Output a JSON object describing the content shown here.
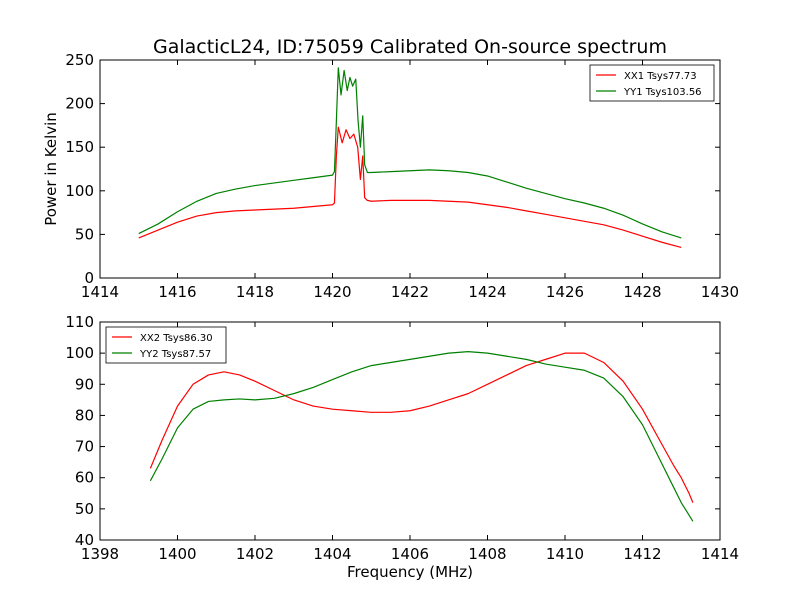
{
  "figure": {
    "title": "GalacticL24, ID:75059 Calibrated On-source spectrum",
    "xlabel": "Frequency (MHz)"
  },
  "chart_data": [
    {
      "type": "line",
      "title": "GalacticL24, ID:75059 Calibrated On-source spectrum",
      "xlabel": "",
      "ylabel": "Power in Kelvin",
      "xlim": [
        1414,
        1430
      ],
      "ylim": [
        0,
        250
      ],
      "xticks": [
        1414,
        1416,
        1418,
        1420,
        1422,
        1424,
        1426,
        1428,
        1430
      ],
      "yticks": [
        0,
        50,
        100,
        150,
        200,
        250
      ],
      "grid": false,
      "legend_position": "top-right",
      "series": [
        {
          "name": "XX1 Tsys77.73",
          "color": "#ff0000",
          "x": [
            1415.0,
            1415.5,
            1416.0,
            1416.5,
            1417.0,
            1417.5,
            1418.0,
            1418.5,
            1419.0,
            1419.5,
            1420.0,
            1420.05,
            1420.1,
            1420.15,
            1420.25,
            1420.35,
            1420.45,
            1420.55,
            1420.65,
            1420.72,
            1420.78,
            1420.83,
            1420.9,
            1421.0,
            1421.5,
            1422.0,
            1422.5,
            1423.0,
            1423.5,
            1424.0,
            1424.5,
            1425.0,
            1425.5,
            1426.0,
            1426.5,
            1427.0,
            1427.5,
            1428.0,
            1428.5,
            1429.0
          ],
          "y": [
            46,
            55,
            64,
            71,
            75,
            77,
            78,
            79,
            80,
            82,
            84,
            86,
            140,
            173,
            155,
            170,
            160,
            165,
            150,
            113,
            140,
            92,
            89,
            88,
            89,
            89,
            89,
            88,
            87,
            84,
            81,
            77,
            73,
            69,
            65,
            61,
            55,
            48,
            41,
            35
          ]
        },
        {
          "name": "YY1 Tsys103.56",
          "color": "#008000",
          "x": [
            1415.0,
            1415.5,
            1416.0,
            1416.5,
            1417.0,
            1417.5,
            1418.0,
            1418.5,
            1419.0,
            1419.5,
            1420.0,
            1420.05,
            1420.1,
            1420.15,
            1420.22,
            1420.3,
            1420.38,
            1420.45,
            1420.52,
            1420.6,
            1420.66,
            1420.72,
            1420.78,
            1420.83,
            1420.9,
            1421.0,
            1421.5,
            1422.0,
            1422.5,
            1423.0,
            1423.5,
            1424.0,
            1424.5,
            1425.0,
            1425.5,
            1426.0,
            1426.5,
            1427.0,
            1427.5,
            1428.0,
            1428.5,
            1429.0
          ],
          "y": [
            51,
            62,
            76,
            88,
            97,
            102,
            106,
            109,
            112,
            115,
            118,
            122,
            180,
            241,
            210,
            238,
            215,
            230,
            220,
            228,
            180,
            150,
            186,
            130,
            121,
            121,
            122,
            123,
            124,
            123,
            121,
            117,
            110,
            103,
            97,
            91,
            86,
            80,
            72,
            62,
            53,
            46
          ]
        }
      ]
    },
    {
      "type": "line",
      "title": "",
      "xlabel": "Frequency (MHz)",
      "ylabel": "",
      "xlim": [
        1398,
        1414
      ],
      "ylim": [
        40,
        110
      ],
      "xticks": [
        1398,
        1400,
        1402,
        1404,
        1406,
        1408,
        1410,
        1412,
        1414
      ],
      "yticks": [
        40,
        50,
        60,
        70,
        80,
        90,
        100,
        110
      ],
      "grid": false,
      "legend_position": "top-left",
      "series": [
        {
          "name": "XX2 Tsys86.30",
          "color": "#ff0000",
          "x": [
            1399.3,
            1399.6,
            1400.0,
            1400.4,
            1400.8,
            1401.2,
            1401.6,
            1402.0,
            1402.5,
            1403.0,
            1403.5,
            1404.0,
            1404.5,
            1405.0,
            1405.5,
            1406.0,
            1406.5,
            1407.0,
            1407.5,
            1408.0,
            1408.5,
            1409.0,
            1409.5,
            1410.0,
            1410.5,
            1411.0,
            1411.5,
            1412.0,
            1412.4,
            1412.8,
            1413.0,
            1413.2,
            1413.3
          ],
          "y": [
            63,
            72,
            83,
            90,
            93,
            94,
            93,
            91,
            88,
            85,
            83,
            82,
            81.5,
            81,
            81,
            81.5,
            83,
            85,
            87,
            90,
            93,
            96,
            98,
            100,
            100,
            97,
            91,
            82,
            73,
            64,
            60,
            55,
            52
          ]
        },
        {
          "name": "YY2 Tsys87.57",
          "color": "#008000",
          "x": [
            1399.3,
            1399.6,
            1400.0,
            1400.4,
            1400.8,
            1401.2,
            1401.6,
            1402.0,
            1402.5,
            1403.0,
            1403.5,
            1404.0,
            1404.5,
            1405.0,
            1405.5,
            1406.0,
            1406.5,
            1407.0,
            1407.5,
            1408.0,
            1408.5,
            1409.0,
            1409.5,
            1410.0,
            1410.5,
            1411.0,
            1411.5,
            1412.0,
            1412.4,
            1412.8,
            1413.0,
            1413.2,
            1413.3
          ],
          "y": [
            59,
            66,
            76,
            82,
            84.5,
            85,
            85.3,
            85,
            85.5,
            87,
            89,
            91.5,
            94,
            96,
            97,
            98,
            99,
            100,
            100.5,
            100,
            99,
            98,
            96.5,
            95.5,
            94.5,
            92,
            86,
            77,
            67,
            57,
            52,
            48,
            46
          ]
        }
      ]
    }
  ]
}
